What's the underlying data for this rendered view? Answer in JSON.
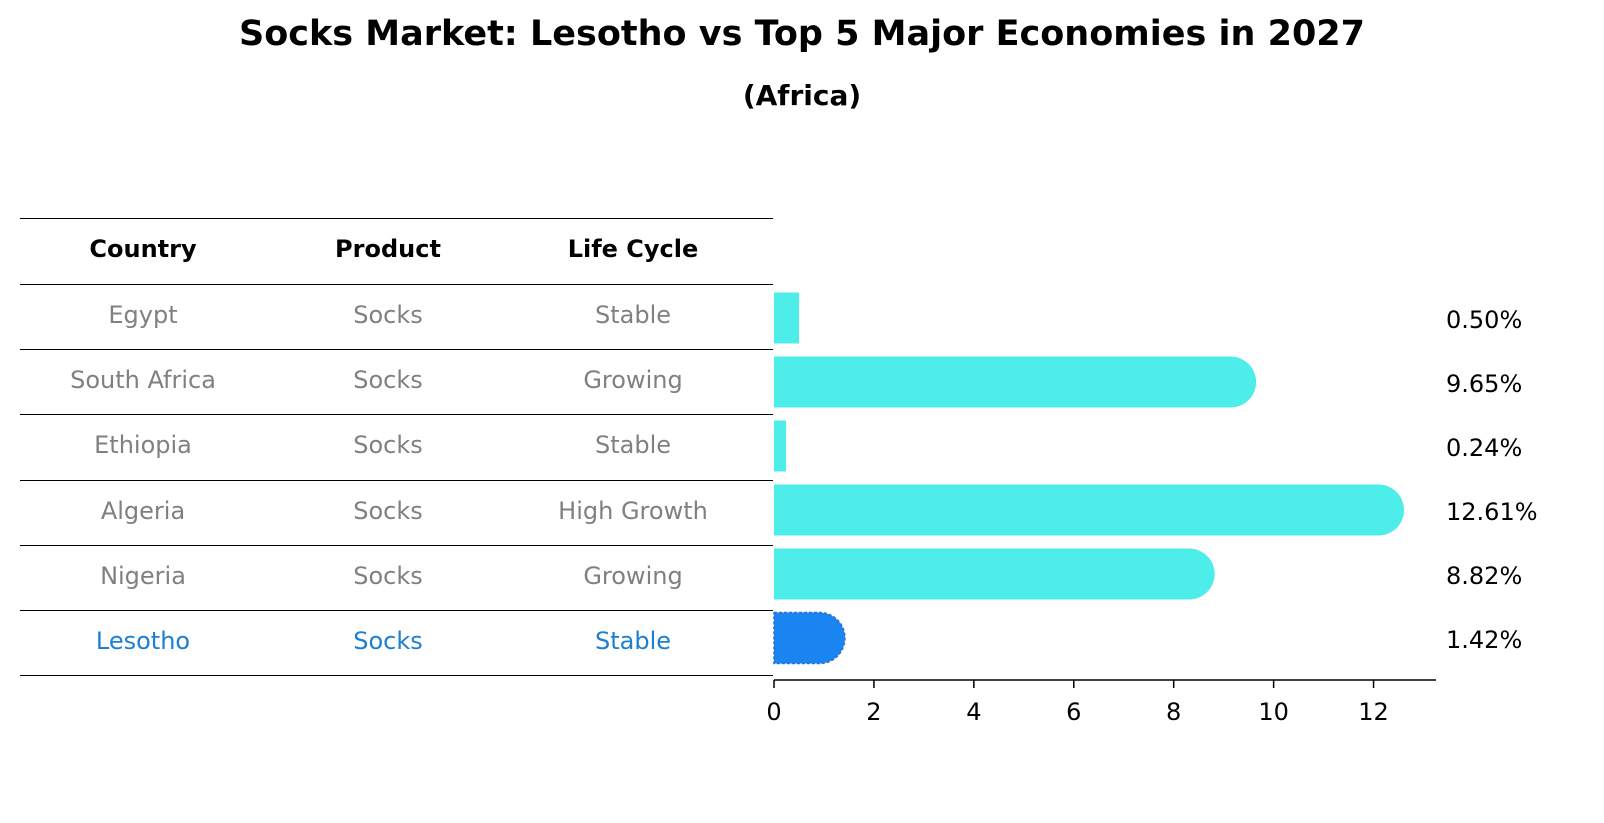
{
  "title": "Socks Market: Lesotho vs Top 5 Major Economies in 2027",
  "subtitle": "(Africa)",
  "table": {
    "headers": [
      "Country",
      "Product",
      "Life Cycle"
    ],
    "rows": [
      [
        "Egypt",
        "Socks",
        "Stable"
      ],
      [
        "South Africa",
        "Socks",
        "Growing"
      ],
      [
        "Ethiopia",
        "Socks",
        "Stable"
      ],
      [
        "Algeria",
        "Socks",
        "High Growth"
      ],
      [
        "Nigeria",
        "Socks",
        "Growing"
      ],
      [
        "Lesotho",
        "Socks",
        "Stable"
      ]
    ]
  },
  "colors": {
    "bar": "#4DEDEA",
    "highlight": "#1A85F0",
    "muted_text": "#808080",
    "highlight_text": "#1B7FD3"
  },
  "chart_data": {
    "type": "bar",
    "orientation": "horizontal",
    "categories": [
      "Egypt",
      "South Africa",
      "Ethiopia",
      "Algeria",
      "Nigeria",
      "Lesotho"
    ],
    "values": [
      0.5,
      9.65,
      0.24,
      12.61,
      8.82,
      1.42
    ],
    "value_labels": [
      "0.50%",
      "9.65%",
      "0.24%",
      "12.61%",
      "8.82%",
      "1.42%"
    ],
    "highlight": "Lesotho",
    "xlim": [
      0,
      13.25
    ],
    "xticks": [
      0,
      2,
      4,
      6,
      8,
      10,
      12
    ],
    "grid": false
  }
}
